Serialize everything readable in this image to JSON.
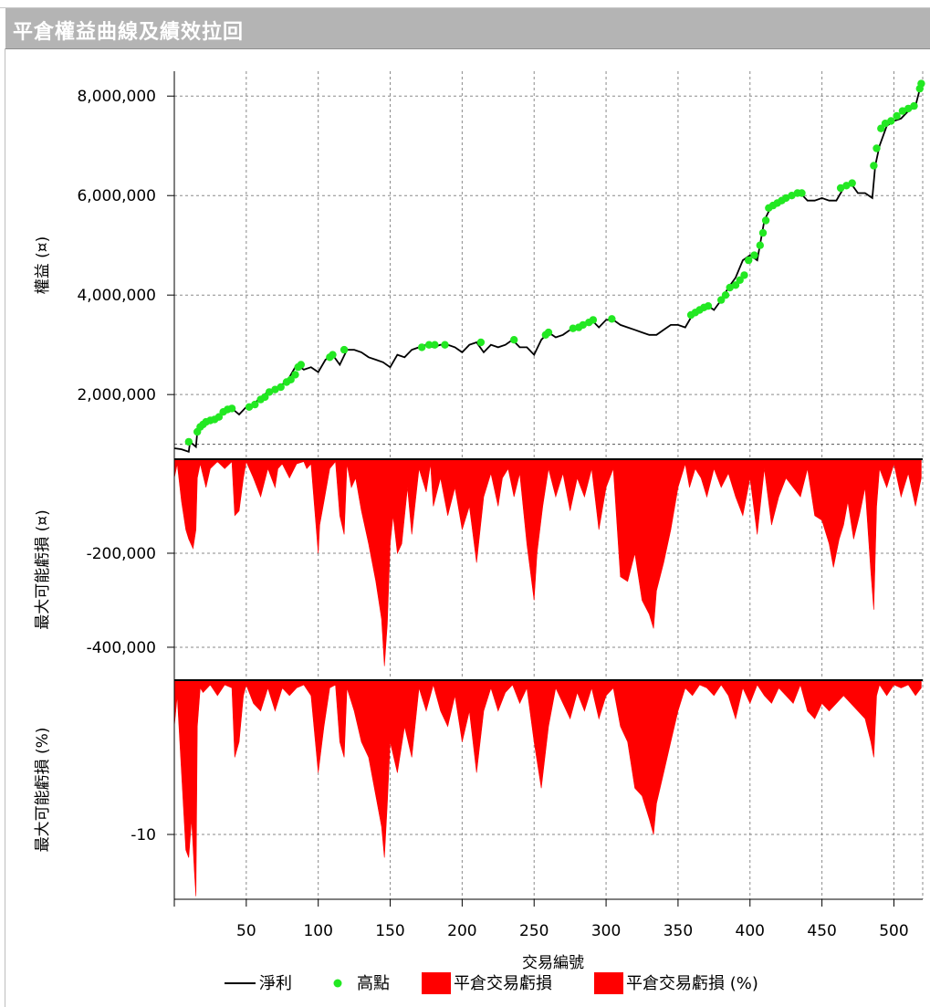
{
  "window": {
    "title": "平倉權益曲線及績效拉回"
  },
  "chart_data": [
    {
      "type": "line",
      "panel": "equity",
      "ylabel": "權益 (¤)",
      "xlabel": "交易編號",
      "xlim": [
        0,
        520
      ],
      "ylim": [
        700000,
        8500000
      ],
      "yticks": [
        {
          "value": 2000000,
          "label": "2,000,000"
        },
        {
          "value": 4000000,
          "label": "4,000,000"
        },
        {
          "value": 6000000,
          "label": "6,000,000"
        },
        {
          "value": 8000000,
          "label": "8,000,000"
        }
      ],
      "xticks": [
        {
          "value": 50,
          "label": "50"
        },
        {
          "value": 100,
          "label": "100"
        },
        {
          "value": 150,
          "label": "150"
        },
        {
          "value": 200,
          "label": "200"
        },
        {
          "value": 250,
          "label": "250"
        },
        {
          "value": 300,
          "label": "300"
        },
        {
          "value": 350,
          "label": "350"
        },
        {
          "value": 400,
          "label": "400"
        },
        {
          "value": 450,
          "label": "450"
        },
        {
          "value": 500,
          "label": "500"
        }
      ],
      "baseline": 1000000,
      "grid": true,
      "series": [
        {
          "name": "淨利",
          "color": "#000000",
          "x": [
            0,
            5,
            10,
            11,
            15,
            16,
            19,
            22,
            25,
            30,
            35,
            40,
            45,
            50,
            55,
            60,
            65,
            70,
            75,
            80,
            85,
            90,
            95,
            100,
            105,
            110,
            115,
            120,
            125,
            130,
            135,
            140,
            145,
            150,
            155,
            160,
            165,
            170,
            175,
            180,
            185,
            190,
            195,
            200,
            205,
            210,
            215,
            220,
            225,
            230,
            235,
            240,
            245,
            250,
            255,
            260,
            265,
            270,
            275,
            280,
            285,
            290,
            295,
            300,
            305,
            310,
            315,
            320,
            325,
            330,
            335,
            340,
            345,
            350,
            355,
            360,
            365,
            370,
            375,
            380,
            385,
            390,
            395,
            400,
            405,
            410,
            415,
            420,
            425,
            430,
            435,
            440,
            445,
            450,
            455,
            460,
            465,
            470,
            475,
            480,
            485,
            487,
            490,
            495,
            500,
            505,
            510,
            515,
            519
          ],
          "y": [
            920000,
            900000,
            850000,
            1050000,
            950000,
            1250000,
            1400000,
            1450000,
            1480000,
            1550000,
            1700000,
            1720000,
            1600000,
            1750000,
            1800000,
            1950000,
            2050000,
            2100000,
            2200000,
            2350000,
            2600000,
            2500000,
            2550000,
            2450000,
            2700000,
            2800000,
            2600000,
            2900000,
            2900000,
            2850000,
            2750000,
            2700000,
            2650000,
            2550000,
            2800000,
            2750000,
            2900000,
            2950000,
            3000000,
            2950000,
            3000000,
            3000000,
            2950000,
            2850000,
            3000000,
            3050000,
            2850000,
            3000000,
            2950000,
            3000000,
            3100000,
            2950000,
            2950000,
            2800000,
            3100000,
            3250000,
            3150000,
            3200000,
            3300000,
            3350000,
            3400000,
            3500000,
            3350000,
            3500000,
            3500000,
            3400000,
            3350000,
            3300000,
            3250000,
            3200000,
            3200000,
            3300000,
            3400000,
            3400000,
            3350000,
            3600000,
            3700000,
            3800000,
            3700000,
            3900000,
            4150000,
            4350000,
            4700000,
            4800000,
            4700000,
            5500000,
            5800000,
            5900000,
            5950000,
            6000000,
            6050000,
            5900000,
            5900000,
            5950000,
            5900000,
            5900000,
            6150000,
            6250000,
            6050000,
            6050000,
            5950000,
            6600000,
            7000000,
            7400000,
            7500000,
            7550000,
            7700000,
            7800000,
            8250000
          ]
        },
        {
          "name": "高點",
          "color": "#22e822",
          "x": [
            10,
            16,
            18,
            20,
            22,
            25,
            28,
            31,
            34,
            37,
            40,
            52,
            56,
            60,
            63,
            66,
            70,
            74,
            78,
            81,
            84,
            86,
            88,
            108,
            110,
            118,
            172,
            177,
            181,
            188,
            213,
            236,
            258,
            260,
            277,
            281,
            284,
            288,
            291,
            304,
            359,
            362,
            365,
            368,
            371,
            380,
            383,
            386,
            390,
            393,
            396,
            399,
            403,
            407,
            409,
            411,
            413,
            416,
            419,
            422,
            425,
            429,
            433,
            436,
            463,
            467,
            471,
            486,
            488,
            491,
            494,
            498,
            502,
            506,
            510,
            514,
            518,
            519
          ],
          "y": [
            1050000,
            1250000,
            1350000,
            1400000,
            1450000,
            1480000,
            1500000,
            1550000,
            1650000,
            1700000,
            1720000,
            1750000,
            1800000,
            1900000,
            1950000,
            2050000,
            2100000,
            2150000,
            2250000,
            2300000,
            2400000,
            2550000,
            2600000,
            2750000,
            2800000,
            2900000,
            2950000,
            3000000,
            3000000,
            3000000,
            3050000,
            3100000,
            3200000,
            3250000,
            3330000,
            3350000,
            3400000,
            3450000,
            3500000,
            3520000,
            3600000,
            3650000,
            3700000,
            3750000,
            3780000,
            3900000,
            4000000,
            4150000,
            4200000,
            4300000,
            4400000,
            4700000,
            4800000,
            5000000,
            5250000,
            5500000,
            5750000,
            5800000,
            5850000,
            5900000,
            5950000,
            6000000,
            6050000,
            6050000,
            6150000,
            6200000,
            6250000,
            6600000,
            6950000,
            7350000,
            7450000,
            7500000,
            7600000,
            7700000,
            7750000,
            7800000,
            8150000,
            8250000
          ]
        }
      ]
    },
    {
      "type": "area",
      "panel": "drawdown",
      "ylabel": "最大可能虧損 (¤)",
      "ylim": [
        -470000,
        0
      ],
      "yticks": [
        {
          "value": -200000,
          "label": "-200,000"
        },
        {
          "value": -400000,
          "label": "-400,000"
        }
      ],
      "series": [
        {
          "name": "平倉交易虧損",
          "color": "#ff0000",
          "x": [
            0,
            2,
            5,
            8,
            10,
            13,
            15,
            16,
            18,
            22,
            25,
            30,
            35,
            40,
            42,
            45,
            48,
            50,
            55,
            60,
            65,
            70,
            72,
            75,
            80,
            85,
            90,
            92,
            95,
            100,
            101,
            104,
            108,
            112,
            115,
            118,
            120,
            123,
            126,
            130,
            135,
            140,
            144,
            146,
            148,
            150,
            152,
            155,
            158,
            162,
            165,
            170,
            175,
            178,
            180,
            185,
            190,
            195,
            200,
            205,
            210,
            215,
            220,
            225,
            228,
            232,
            236,
            240,
            245,
            250,
            252,
            256,
            260,
            265,
            270,
            275,
            280,
            285,
            290,
            295,
            300,
            305,
            310,
            315,
            320,
            325,
            330,
            333,
            335,
            340,
            345,
            350,
            355,
            358,
            362,
            366,
            370,
            375,
            380,
            385,
            390,
            395,
            400,
            405,
            410,
            415,
            420,
            425,
            430,
            435,
            440,
            445,
            450,
            455,
            458,
            462,
            465,
            468,
            472,
            476,
            480,
            484,
            486,
            488,
            490,
            495,
            500,
            505,
            510,
            515,
            519
          ],
          "y": [
            -40000,
            -10000,
            -90000,
            -150000,
            -170000,
            -190000,
            -150000,
            -40000,
            -10000,
            -60000,
            -20000,
            -5000,
            -20000,
            -5000,
            -120000,
            -110000,
            -40000,
            -5000,
            -40000,
            -80000,
            -20000,
            -60000,
            -20000,
            -10000,
            -40000,
            -10000,
            -5000,
            -20000,
            -10000,
            -200000,
            -140000,
            -90000,
            -20000,
            -5000,
            -120000,
            -160000,
            -10000,
            -60000,
            -40000,
            -110000,
            -180000,
            -260000,
            -340000,
            -440000,
            -350000,
            -180000,
            -120000,
            -200000,
            -180000,
            -60000,
            -160000,
            -20000,
            -70000,
            -10000,
            -100000,
            -40000,
            -120000,
            -60000,
            -150000,
            -100000,
            -220000,
            -80000,
            -30000,
            -100000,
            -40000,
            -20000,
            -80000,
            -30000,
            -180000,
            -300000,
            -200000,
            -100000,
            -20000,
            -80000,
            -30000,
            -110000,
            -40000,
            -80000,
            -20000,
            -150000,
            -60000,
            -20000,
            -250000,
            -260000,
            -200000,
            -300000,
            -330000,
            -360000,
            -280000,
            -220000,
            -150000,
            -60000,
            -10000,
            -60000,
            -20000,
            -40000,
            -80000,
            -20000,
            -60000,
            -30000,
            -80000,
            -120000,
            -40000,
            -160000,
            -20000,
            -140000,
            -80000,
            -40000,
            -60000,
            -80000,
            -20000,
            -120000,
            -130000,
            -180000,
            -230000,
            -170000,
            -140000,
            -90000,
            -170000,
            -120000,
            -60000,
            -240000,
            -320000,
            -100000,
            -20000,
            -60000,
            -10000,
            -80000,
            -30000,
            -100000,
            -40000
          ]
        }
      ]
    },
    {
      "type": "area",
      "panel": "drawdown_pct",
      "ylabel": "最大可能虧損 (%)",
      "ylim": [
        -14.2,
        0
      ],
      "yticks": [
        {
          "value": -10,
          "label": "-10"
        }
      ],
      "series": [
        {
          "name": "平倉交易虧損 (%)",
          "color": "#ff0000",
          "x": [
            0,
            2,
            5,
            8,
            10,
            12,
            14,
            15,
            16,
            18,
            20,
            25,
            30,
            35,
            40,
            42,
            45,
            48,
            50,
            55,
            60,
            65,
            70,
            75,
            80,
            85,
            90,
            95,
            100,
            104,
            108,
            112,
            115,
            118,
            120,
            125,
            130,
            135,
            140,
            144,
            146,
            148,
            150,
            155,
            160,
            165,
            170,
            175,
            180,
            185,
            190,
            195,
            200,
            205,
            210,
            215,
            220,
            225,
            230,
            235,
            240,
            245,
            250,
            255,
            260,
            265,
            270,
            275,
            280,
            285,
            290,
            295,
            300,
            305,
            310,
            315,
            320,
            325,
            330,
            333,
            335,
            340,
            345,
            350,
            355,
            360,
            365,
            370,
            375,
            380,
            385,
            390,
            395,
            400,
            405,
            410,
            415,
            420,
            425,
            430,
            435,
            440,
            445,
            450,
            455,
            460,
            465,
            470,
            475,
            480,
            484,
            486,
            488,
            490,
            495,
            500,
            505,
            510,
            515,
            519
          ],
          "y": [
            -3,
            -1,
            -6,
            -11,
            -11.5,
            -9,
            -12.5,
            -14,
            -3,
            -0.5,
            -0.8,
            -0.3,
            -1,
            -0.3,
            -0.5,
            -5,
            -4,
            -1,
            -0.3,
            -1.5,
            -2,
            -0.5,
            -2,
            -0.5,
            -1,
            -0.5,
            -0.3,
            -1,
            -6,
            -3,
            -0.5,
            -0.3,
            -4,
            -5,
            -0.5,
            -2,
            -4,
            -5,
            -7.5,
            -9.5,
            -11.5,
            -8,
            -4,
            -6,
            -3,
            -5,
            -0.5,
            -2,
            -0.3,
            -2,
            -3,
            -1,
            -4,
            -2,
            -6,
            -2,
            -0.5,
            -2,
            -0.8,
            -0.3,
            -1.5,
            -0.5,
            -4,
            -7,
            -3,
            -0.5,
            -1.5,
            -2.5,
            -0.8,
            -2,
            -0.5,
            -2.5,
            -1,
            -0.5,
            -3,
            -4,
            -7,
            -7.5,
            -9,
            -10,
            -8,
            -6,
            -4,
            -2,
            -0.5,
            -1,
            -0.3,
            -0.5,
            -1,
            -0.3,
            -1,
            -2.5,
            -0.5,
            -1.5,
            -0.3,
            -1,
            -1.5,
            -0.5,
            -1,
            -1.5,
            -0.3,
            -2,
            -2.5,
            -1.5,
            -2,
            -1.5,
            -1,
            -1.5,
            -2,
            -2.5,
            -4,
            -5,
            -1,
            -0.3,
            -1,
            -0.3,
            -0.5,
            -0.3,
            -1,
            -0.5
          ]
        }
      ]
    }
  ],
  "legend": {
    "items": [
      {
        "label": "淨利",
        "symbol": "line",
        "color": "#000000"
      },
      {
        "label": "高點",
        "symbol": "dot",
        "color": "#22e822"
      },
      {
        "label": "平倉交易虧損",
        "symbol": "box",
        "color": "#ff0000"
      },
      {
        "label": "平倉交易虧損 (%)",
        "symbol": "box",
        "color": "#ff0000"
      }
    ]
  }
}
